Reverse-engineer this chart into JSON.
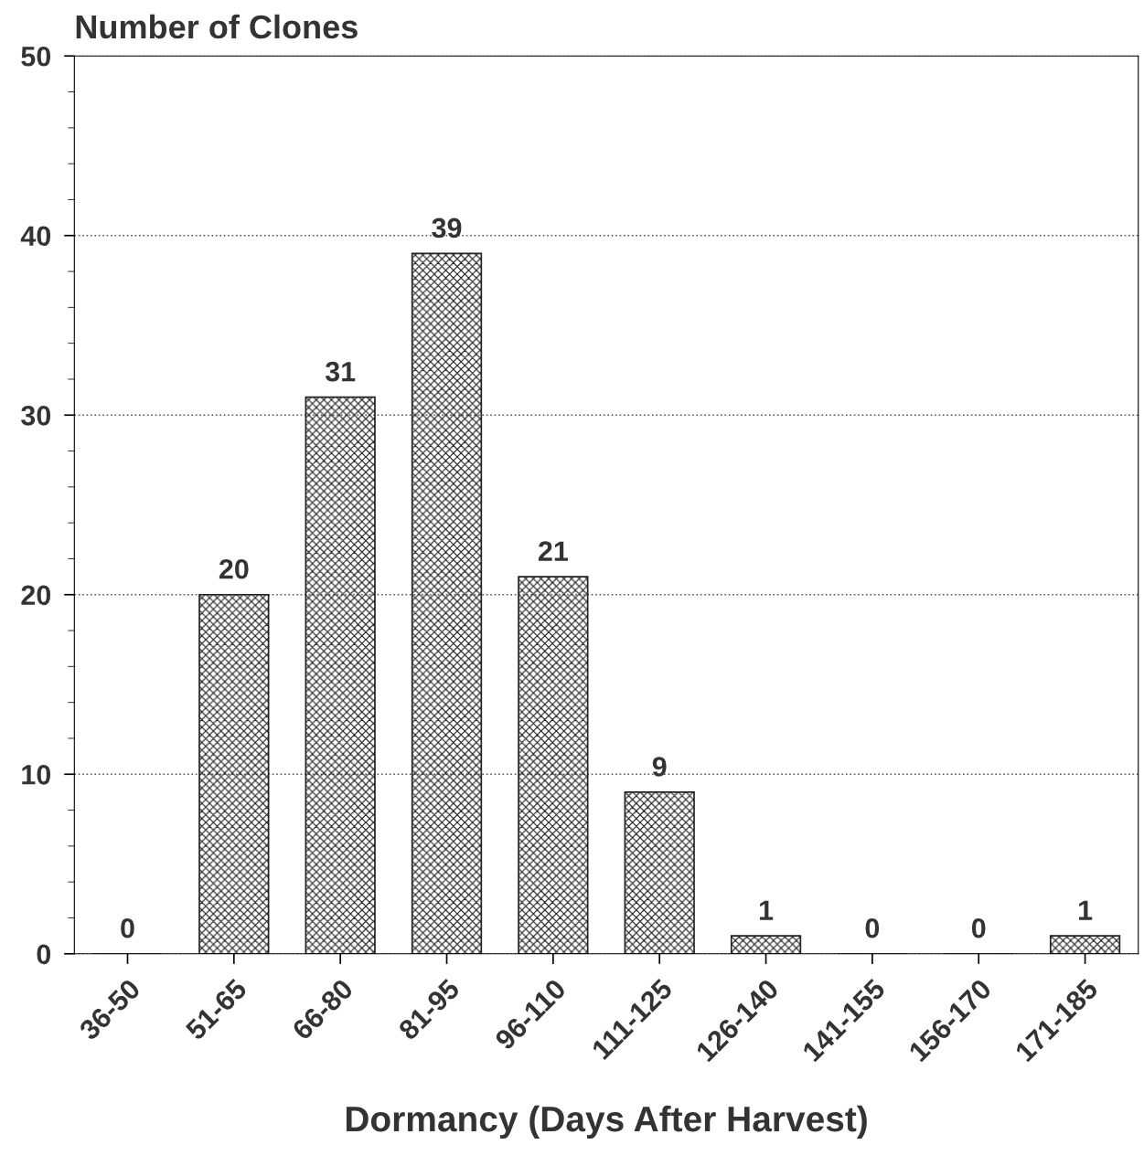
{
  "chart_data": {
    "type": "bar",
    "ylabel": "Number of Clones",
    "xlabel": "Dormancy (Days After Harvest)",
    "categories": [
      "36-50",
      "51-65",
      "66-80",
      "81-95",
      "96-110",
      "111-125",
      "126-140",
      "141-155",
      "156-170",
      "171-185"
    ],
    "values": [
      0,
      20,
      31,
      39,
      21,
      9,
      1,
      0,
      0,
      1
    ],
    "color": "#222222",
    "ylim": [
      0,
      50
    ],
    "yticks": [
      0,
      10,
      20,
      30,
      40,
      50
    ],
    "grid": "y",
    "data_labels": true
  }
}
